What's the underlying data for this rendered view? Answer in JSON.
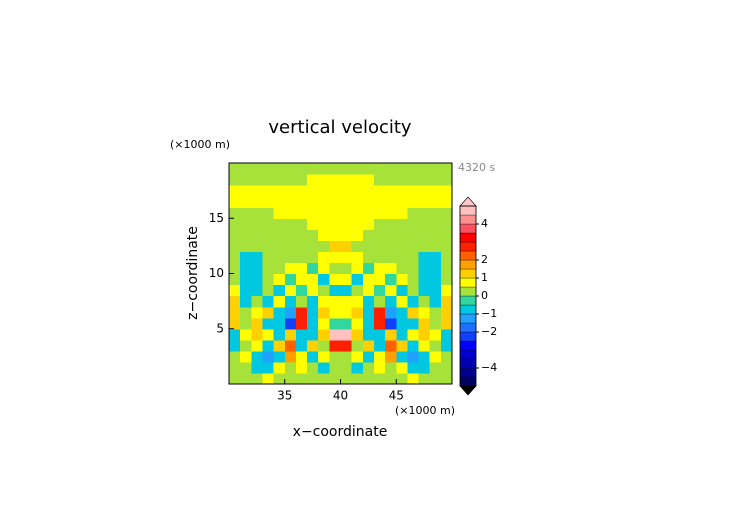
{
  "chart_data": {
    "type": "contour",
    "title": "vertical velocity",
    "time_label": "4320 s",
    "xlabel": "x−coordinate",
    "ylabel": "z−coordinate",
    "x_unit": "(×1000 m)",
    "y_unit": "(×1000 m)",
    "xlim": [
      30,
      50
    ],
    "ylim": [
      0,
      20
    ],
    "xticks": [
      35,
      40,
      45
    ],
    "yticks": [
      5,
      10,
      15
    ],
    "x": [
      30.5,
      31.5,
      32.5,
      33.5,
      34.5,
      35.5,
      36.5,
      37.5,
      38.5,
      39.5,
      40.5,
      41.5,
      42.5,
      43.5,
      44.5,
      45.5,
      46.5,
      47.5,
      48.5,
      49.5
    ],
    "y": [
      0.5,
      1.5,
      2.5,
      3.5,
      4.5,
      5.5,
      6.5,
      7.5,
      8.5,
      9.5,
      10.5,
      11.5,
      12.5,
      13.5,
      14.5,
      15.5,
      16.5,
      17.5,
      18.5,
      19.5
    ],
    "z": [
      [
        0.2,
        0.2,
        0.2,
        0.7,
        0.2,
        0.2,
        0.2,
        0.2,
        0.2,
        0.2,
        0.2,
        0.2,
        0.2,
        0.2,
        0.2,
        0.2,
        0.7,
        0.2,
        0.2,
        0.2
      ],
      [
        0.2,
        0.2,
        -0.7,
        -0.6,
        0.7,
        0.2,
        0.7,
        0.2,
        -0.6,
        0.2,
        0.2,
        -0.6,
        0.2,
        0.7,
        0.2,
        0.7,
        -0.6,
        -0.7,
        0.2,
        0.2
      ],
      [
        0.2,
        0.7,
        -0.6,
        -1.2,
        -0.6,
        1.5,
        0.7,
        -0.7,
        0.7,
        0.2,
        0.2,
        0.7,
        -0.7,
        0.7,
        1.5,
        -0.6,
        -1.2,
        -0.6,
        0.7,
        0.2
      ],
      [
        -0.7,
        0.2,
        0.7,
        -0.7,
        1.2,
        2.2,
        -0.6,
        1.2,
        0.2,
        2.5,
        2.5,
        0.2,
        1.2,
        -0.6,
        2.2,
        1.2,
        -0.7,
        0.7,
        0.2,
        -0.7
      ],
      [
        -0.6,
        0.7,
        1.2,
        0.7,
        -0.8,
        1.2,
        -0.6,
        -0.7,
        1.2,
        4.7,
        4.7,
        1.2,
        -0.7,
        -0.6,
        1.2,
        -0.8,
        0.7,
        1.2,
        0.7,
        -0.6
      ],
      [
        1.2,
        0.2,
        1.2,
        -0.6,
        -0.8,
        -2.5,
        2.5,
        -0.6,
        0.7,
        -0.3,
        -0.3,
        0.7,
        -0.6,
        2.5,
        -2.5,
        -0.8,
        -0.6,
        1.2,
        0.2,
        1.2
      ],
      [
        1.2,
        0.2,
        0.7,
        1.2,
        -0.6,
        -1.5,
        2.8,
        -0.6,
        1.2,
        0.7,
        0.7,
        1.2,
        -0.6,
        2.8,
        -1.5,
        -0.6,
        1.2,
        0.7,
        0.2,
        1.2
      ],
      [
        1.2,
        -0.7,
        0.2,
        -0.6,
        0.7,
        -0.6,
        0.2,
        -0.6,
        0.7,
        0.7,
        0.7,
        0.7,
        -0.6,
        0.2,
        -0.6,
        0.7,
        -0.6,
        0.2,
        -0.7,
        1.2
      ],
      [
        0.7,
        -0.7,
        -0.7,
        0.2,
        -0.6,
        0.7,
        -0.3,
        0.7,
        0.2,
        -0.6,
        -0.6,
        0.2,
        0.7,
        -0.3,
        0.7,
        -0.6,
        0.2,
        -0.7,
        -0.7,
        0.7
      ],
      [
        0.2,
        -0.7,
        -0.7,
        0.2,
        0.7,
        -0.3,
        0.7,
        0.7,
        -0.6,
        0.7,
        0.7,
        -0.6,
        0.7,
        0.7,
        -0.3,
        0.7,
        0.2,
        -0.7,
        -0.7,
        0.2
      ],
      [
        0.2,
        -0.7,
        -0.7,
        0.2,
        0.2,
        0.7,
        0.7,
        -0.4,
        0.7,
        0.2,
        0.2,
        0.7,
        -0.4,
        0.7,
        0.7,
        0.2,
        0.2,
        -0.7,
        -0.7,
        0.2
      ],
      [
        0.2,
        -0.6,
        -0.6,
        0.2,
        0.2,
        0.2,
        0.2,
        0.2,
        0.7,
        0.7,
        0.7,
        0.7,
        0.2,
        0.2,
        0.2,
        0.2,
        0.2,
        -0.6,
        -0.6,
        0.2
      ],
      [
        0.2,
        0.2,
        0.2,
        0.2,
        0.2,
        0.2,
        0.2,
        0.2,
        0.2,
        1.2,
        1.2,
        0.2,
        0.2,
        0.2,
        0.2,
        0.2,
        0.2,
        0.2,
        0.2,
        0.2
      ],
      [
        0.2,
        0.2,
        0.2,
        0.2,
        0.2,
        0.2,
        0.2,
        0.2,
        0.7,
        0.7,
        0.7,
        0.7,
        0.2,
        0.2,
        0.2,
        0.2,
        0.2,
        0.2,
        0.2,
        0.2
      ],
      [
        0.2,
        0.2,
        0.2,
        0.2,
        0.2,
        0.2,
        0.2,
        0.7,
        0.7,
        0.7,
        0.7,
        0.7,
        0.7,
        0.2,
        0.2,
        0.2,
        0.2,
        0.2,
        0.2,
        0.2
      ],
      [
        0.2,
        0.2,
        0.2,
        0.2,
        0.7,
        0.7,
        0.7,
        0.7,
        0.7,
        0.7,
        0.7,
        0.7,
        0.7,
        0.7,
        0.7,
        0.7,
        0.2,
        0.2,
        0.2,
        0.2
      ],
      [
        0.7,
        0.7,
        0.7,
        0.7,
        0.7,
        0.7,
        0.7,
        0.7,
        0.7,
        0.7,
        0.7,
        0.7,
        0.7,
        0.7,
        0.7,
        0.7,
        0.7,
        0.7,
        0.7,
        0.7
      ],
      [
        0.7,
        0.7,
        0.7,
        0.7,
        0.7,
        0.7,
        0.7,
        0.7,
        0.7,
        0.7,
        0.7,
        0.7,
        0.7,
        0.7,
        0.7,
        0.7,
        0.7,
        0.7,
        0.7,
        0.7
      ],
      [
        0.2,
        0.2,
        0.2,
        0.2,
        0.2,
        0.2,
        0.2,
        0.7,
        0.7,
        0.7,
        0.7,
        0.7,
        0.7,
        0.2,
        0.2,
        0.2,
        0.2,
        0.2,
        0.2,
        0.2
      ],
      [
        0.2,
        0.2,
        0.2,
        0.2,
        0.2,
        0.2,
        0.2,
        0.2,
        0.2,
        0.2,
        0.2,
        0.2,
        0.2,
        0.2,
        0.2,
        0.2,
        0.2,
        0.2,
        0.2,
        0.2
      ]
    ],
    "levels": [
      -5,
      -4.5,
      -4,
      -3.5,
      -3,
      -2.5,
      -2,
      -1.5,
      -1,
      -0.5,
      0,
      0.5,
      1,
      1.5,
      2,
      2.5,
      3,
      3.5,
      4,
      4.5,
      5
    ],
    "colors": [
      "#000060",
      "#000090",
      "#0000b0",
      "#0000d0",
      "#0000ff",
      "#1040ff",
      "#2070ff",
      "#20a0ff",
      "#00c8e0",
      "#30d8a0",
      "#a6e23a",
      "#ffff00",
      "#ffd000",
      "#ffa000",
      "#ff6000",
      "#ff2000",
      "#ff0000",
      "#ff5060",
      "#ff9090",
      "#ffc0c0"
    ],
    "under_color": "#000000",
    "over_color": "#ffc8c8",
    "colorbar_ticks": [
      4,
      2,
      1,
      0,
      {
        "value": -1,
        "label": "−1"
      },
      {
        "value": -2,
        "label": "−2"
      },
      {
        "value": -4,
        "label": "−4"
      }
    ]
  }
}
